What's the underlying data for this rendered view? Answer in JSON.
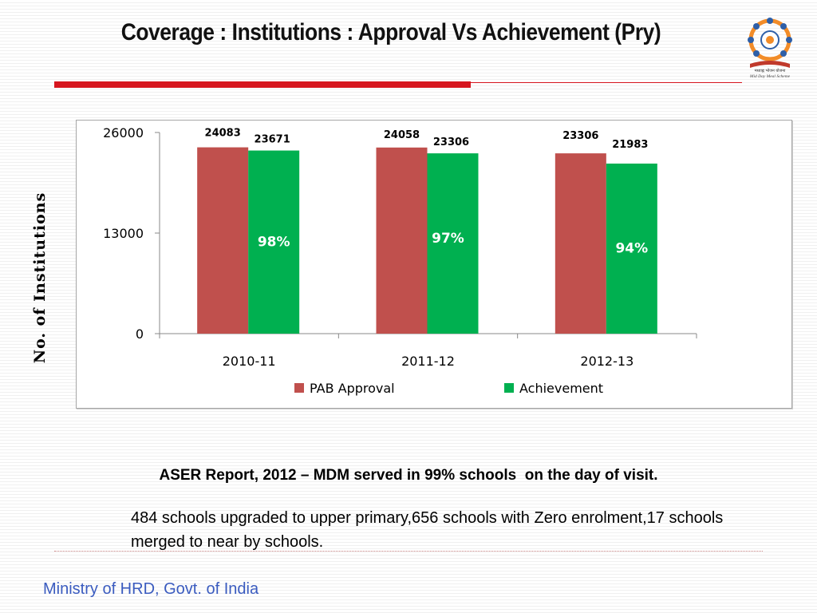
{
  "slide": {
    "title": "Coverage : Institutions : Approval Vs Achievement (Pry)",
    "logo": {
      "icon": "mid-day-meal-logo",
      "hindi_text": "मध्याह्न भोजन योजना",
      "english_text": "Mid Day Meal Scheme"
    },
    "aser_note": "ASER Report, 2012 – MDM served in 99% schools  on the day of visit.",
    "detail_note": "484 schools upgraded to upper primary,656 schools with Zero enrolment,17 schools merged to near by schools.",
    "footer": "Ministry of HRD, Govt. of India"
  },
  "chart_data": {
    "type": "bar",
    "categories": [
      "2010-11",
      "2011-12",
      "2012-13"
    ],
    "series": [
      {
        "name": "PAB Approval",
        "color": "#c0504d",
        "values": [
          24083,
          24058,
          23306
        ],
        "labels": [
          "24083",
          "24058",
          "23306"
        ]
      },
      {
        "name": "Achievement",
        "color": "#00b050",
        "values": [
          23671,
          23306,
          21983
        ],
        "labels": [
          "23671",
          "23306",
          "21983"
        ]
      }
    ],
    "percent_labels": [
      "98%",
      "97%",
      "94%"
    ],
    "ylabel": "No. of Institutions",
    "ylim": [
      0,
      26000
    ],
    "yticks": [
      0,
      13000,
      26000
    ],
    "ytick_labels": [
      "0",
      "13000",
      "26000"
    ],
    "legend": "bottom",
    "grid": false
  }
}
